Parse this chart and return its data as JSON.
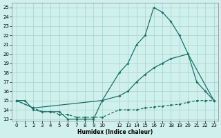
{
  "xlabel": "Humidex (Indice chaleur)",
  "bg_color": "#cff0ec",
  "grid_color": "#aad8d2",
  "line_color": "#1a7068",
  "xlim": [
    -0.5,
    23.5
  ],
  "ylim": [
    12.8,
    25.5
  ],
  "yticks": [
    13,
    14,
    15,
    16,
    17,
    18,
    19,
    20,
    21,
    22,
    23,
    24,
    25
  ],
  "xtick_vals": [
    0,
    1,
    2,
    3,
    4,
    5,
    6,
    7,
    8,
    9,
    10,
    12,
    13,
    14,
    15,
    16,
    17,
    18,
    19,
    20,
    21,
    22,
    23
  ],
  "xtick_labels": [
    "0",
    "1",
    "2",
    "3",
    "4",
    "5",
    "6",
    "7",
    "8",
    "9",
    "10",
    "12",
    "13",
    "14",
    "15",
    "16",
    "17",
    "18",
    "19",
    "20",
    "21",
    "22",
    "23"
  ],
  "line1_x": [
    0,
    1,
    2,
    3,
    4,
    5,
    6,
    7,
    8,
    9,
    10,
    12,
    13,
    14,
    15,
    16,
    17,
    18,
    19,
    20,
    21,
    22,
    23
  ],
  "line1_y": [
    15,
    15,
    14,
    13.8,
    13.8,
    13.8,
    13,
    13,
    13,
    13,
    15,
    18,
    19,
    21,
    22,
    25,
    24.5,
    23.5,
    22,
    20,
    17,
    16,
    15
  ],
  "line2_x": [
    0,
    2,
    10,
    12,
    13,
    14,
    15,
    16,
    17,
    18,
    20,
    23
  ],
  "line2_y": [
    15,
    14.2,
    15,
    15.5,
    16,
    17,
    17.8,
    18.5,
    19,
    19.5,
    20,
    15
  ],
  "line3_x": [
    0,
    2,
    3,
    4,
    5,
    6,
    7,
    8,
    9,
    10,
    12,
    13,
    14,
    15,
    16,
    17,
    18,
    19,
    20,
    21,
    22,
    23
  ],
  "line3_y": [
    15,
    14.2,
    13.8,
    13.8,
    13.5,
    13.5,
    13.2,
    13.2,
    13.2,
    13.2,
    14,
    14,
    14,
    14.2,
    14.3,
    14.4,
    14.5,
    14.6,
    14.8,
    15,
    15,
    15
  ]
}
